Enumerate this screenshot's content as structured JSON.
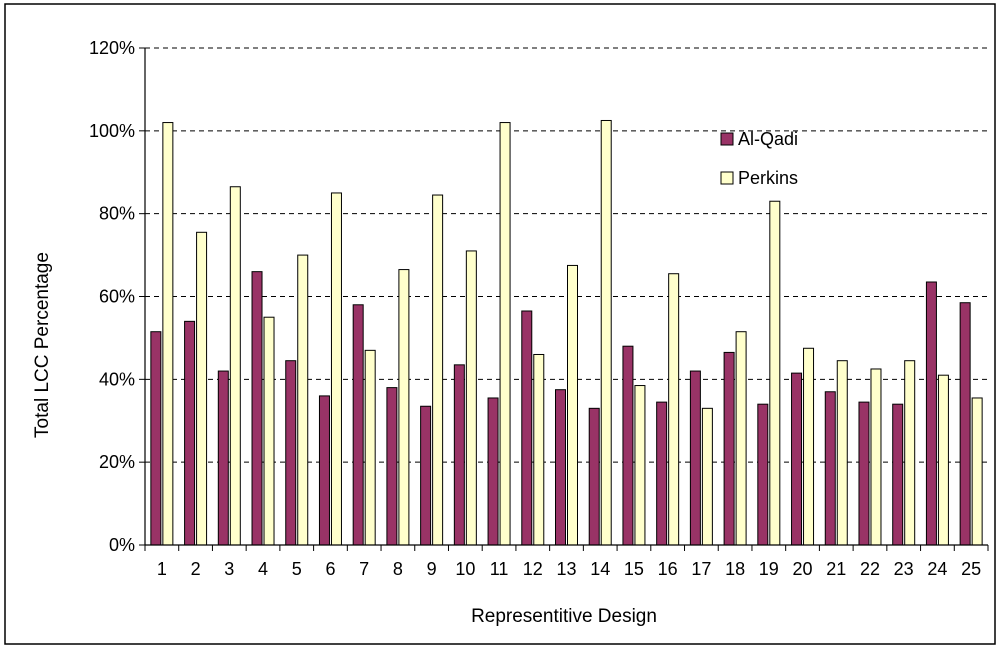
{
  "colors": {
    "al_qadi": "#993366",
    "perkins": "#FFFFCC",
    "border": "#000000",
    "grid": "#000000",
    "background": "#FFFFFF"
  },
  "chart_data": {
    "type": "bar",
    "title": "",
    "xlabel": "Representitive Design",
    "ylabel": "Total LCC Percentage",
    "categories": [
      "1",
      "2",
      "3",
      "4",
      "5",
      "6",
      "7",
      "8",
      "9",
      "10",
      "11",
      "12",
      "13",
      "14",
      "15",
      "16",
      "17",
      "18",
      "19",
      "20",
      "21",
      "22",
      "23",
      "24",
      "25"
    ],
    "ylim": [
      0,
      120
    ],
    "y_ticks": [
      0,
      20,
      40,
      60,
      80,
      100,
      120
    ],
    "y_tick_labels": [
      "0%",
      "20%",
      "40%",
      "60%",
      "80%",
      "100%",
      "120%"
    ],
    "grid": "horizontal-dashed",
    "legend_position": "top-right",
    "series": [
      {
        "name": "Al-Qadi",
        "color": "#993366",
        "values": [
          51.5,
          54,
          42,
          66,
          44.5,
          36,
          58,
          38,
          33.5,
          43.5,
          35.5,
          56.5,
          37.5,
          33,
          48,
          34.5,
          42,
          46.5,
          34,
          41.5,
          37,
          34.5,
          34,
          63.5,
          58.5
        ]
      },
      {
        "name": "Perkins",
        "color": "#FFFFCC",
        "values": [
          102,
          75.5,
          86.5,
          55,
          70,
          85,
          47,
          66.5,
          84.5,
          71,
          102,
          46,
          67.5,
          102.5,
          38.5,
          65.5,
          33,
          51.5,
          83,
          47.5,
          44.5,
          42.5,
          44.5,
          41,
          35.5
        ]
      }
    ]
  }
}
